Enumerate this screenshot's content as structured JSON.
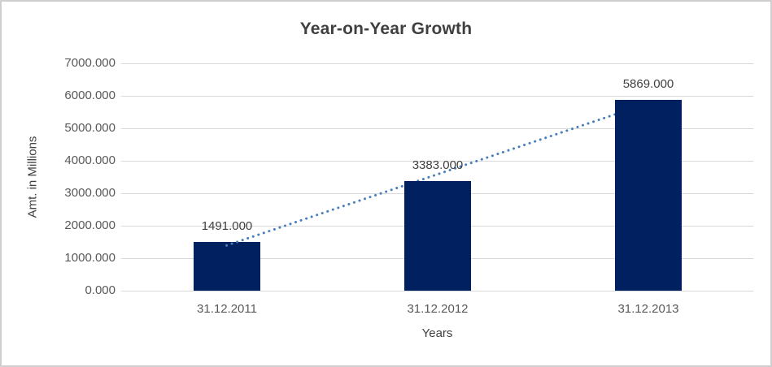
{
  "chart_data": {
    "type": "bar",
    "title": "Year-on-Year Growth",
    "xlabel": "Years",
    "ylabel": "Amt. in Millions",
    "categories": [
      "31.12.2011",
      "31.12.2012",
      "31.12.2013"
    ],
    "values": [
      1491,
      3383,
      5869
    ],
    "data_labels": [
      "1491.000",
      "3383.000",
      "5869.000"
    ],
    "yticks": [
      "7000.000",
      "6000.000",
      "5000.000",
      "4000.000",
      "3000.000",
      "2000.000",
      "1000.000",
      "0.000"
    ],
    "ylim": [
      0,
      7000
    ],
    "ytick_step": 1000,
    "grid": true,
    "legend": "none",
    "trendline": {
      "type": "linear",
      "style": "dotted"
    },
    "colors": {
      "bar": "#002060",
      "trendline": "#4a7ebb",
      "gridline": "#d9d9d9",
      "tick_text": "#595959",
      "label_text": "#404040",
      "title_text": "#404040",
      "border": "#d0cece"
    }
  }
}
